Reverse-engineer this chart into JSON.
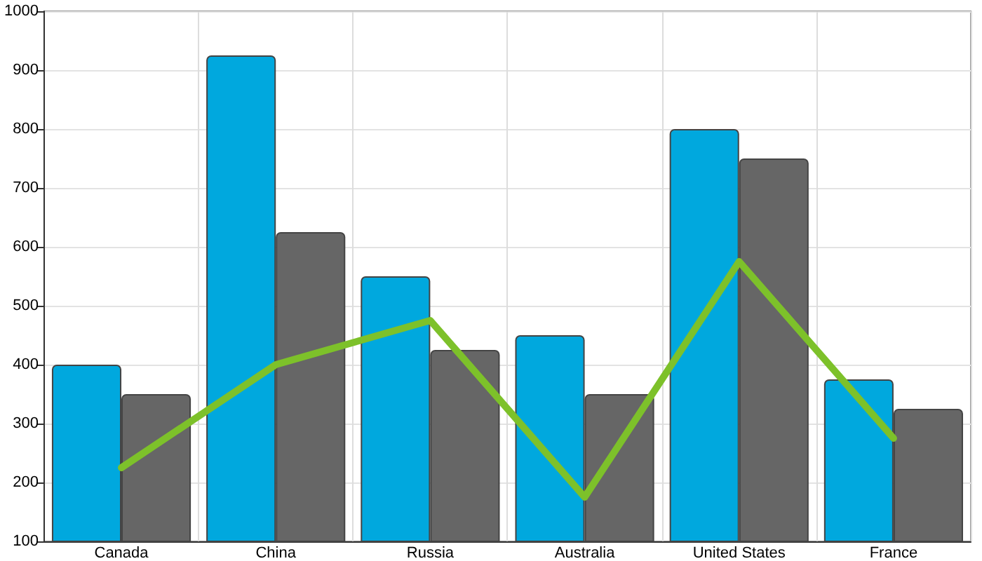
{
  "chart_data": {
    "type": "bar",
    "categories": [
      "Canada",
      "China",
      "Russia",
      "Australia",
      "United States",
      "France"
    ],
    "series": [
      {
        "color": "#00a8de",
        "values": [
          400,
          925,
          550,
          450,
          800,
          375
        ]
      },
      {
        "color": "#666666",
        "values": [
          350,
          625,
          425,
          350,
          750,
          325
        ]
      },
      {
        "type": "line",
        "color": "#7dc12a",
        "values": [
          225,
          400,
          475,
          175,
          575,
          275
        ]
      }
    ],
    "ylim": [
      100,
      1000
    ],
    "yticks": [
      100,
      200,
      300,
      400,
      500,
      600,
      700,
      800,
      900,
      1000
    ],
    "grid": true,
    "marker": "none",
    "line_style": "solid"
  }
}
